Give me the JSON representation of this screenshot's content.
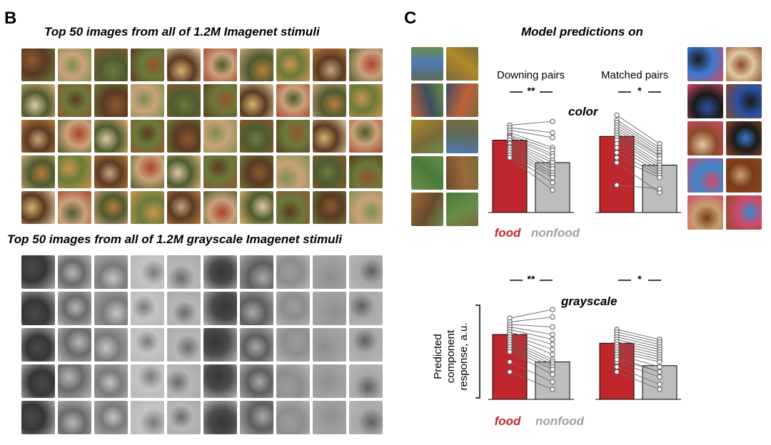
{
  "panel_b": {
    "letter": "B",
    "grid1_title": "Top 50 images from all of 1.2M Imagenet stimuli",
    "grid2_title": "Top 50 images from all of 1.2M grayscale Imagenet stimuli",
    "colors": [
      "#8a5a2b",
      "#c9954a",
      "#6b7a3a",
      "#a8442e",
      "#d8b070",
      "#5a3a22",
      "#b77b3c",
      "#7e8f4e",
      "#caa27a",
      "#94532f",
      "#e0c8a0",
      "#4e5a2e"
    ],
    "grays": [
      "#4a4a4a",
      "#7a7a7a",
      "#a9a9a9",
      "#5e5e5e",
      "#c4c4c4",
      "#353535",
      "#8d8d8d",
      "#b6b6b6",
      "#6a6a6a",
      "#9c9c9c"
    ]
  },
  "panel_c": {
    "letter": "C",
    "title": "Model predictions on",
    "subtitle_downing": "Downing pairs",
    "subtitle_matched": "Matched pairs",
    "sig_downing_color": "**",
    "sig_matched_color": "*",
    "sig_downing_gray": "**",
    "sig_matched_gray": "*",
    "label_color": "color",
    "label_gray": "grayscale",
    "label_food": "food",
    "label_nonfood": "nonfood",
    "ylabel_line1": "Predicted",
    "ylabel_line2": "component",
    "ylabel_line3": "response, a.u.",
    "food_color": "#c0272d",
    "nonfood_color": "#bdbdbd",
    "left_thumbs": [
      "#5c6b5a",
      "#3d4f5e",
      "#6b8c4a",
      "#4a7a3a",
      "#c0603a",
      "#4f7ab0",
      "#9a6a3a",
      "#7a6a3a",
      "#b08a2a",
      "#6a4a2a"
    ],
    "right_thumbs": [
      "#1a1a1a",
      "#1a1a1a",
      "#d04a6a",
      "#3a8ad0",
      "#2a50a0",
      "#3a7ad0",
      "#7a3a1a",
      "#8a4a2a",
      "#e0c8a0",
      "#c8a070"
    ]
  },
  "chart_data": [
    {
      "type": "bar",
      "title": "Downing pairs",
      "panel": "color",
      "categories": [
        "food",
        "nonfood"
      ],
      "values": [
        0.58,
        0.4
      ],
      "pairs": [
        [
          0.7,
          0.73
        ],
        [
          0.68,
          0.64
        ],
        [
          0.66,
          0.6
        ],
        [
          0.64,
          0.52
        ],
        [
          0.62,
          0.5
        ],
        [
          0.61,
          0.47
        ],
        [
          0.6,
          0.45
        ],
        [
          0.58,
          0.42
        ],
        [
          0.56,
          0.4
        ],
        [
          0.55,
          0.37
        ],
        [
          0.53,
          0.35
        ],
        [
          0.52,
          0.32
        ],
        [
          0.5,
          0.3
        ],
        [
          0.48,
          0.28
        ],
        [
          0.46,
          0.24
        ],
        [
          0.44,
          0.18
        ]
      ]
    },
    {
      "type": "bar",
      "title": "Matched pairs",
      "panel": "color",
      "categories": [
        "food",
        "nonfood"
      ],
      "values": [
        0.61,
        0.38
      ],
      "pairs": [
        [
          0.78,
          0.55
        ],
        [
          0.74,
          0.52
        ],
        [
          0.72,
          0.5
        ],
        [
          0.7,
          0.48
        ],
        [
          0.68,
          0.46
        ],
        [
          0.66,
          0.45
        ],
        [
          0.64,
          0.43
        ],
        [
          0.62,
          0.4
        ],
        [
          0.6,
          0.38
        ],
        [
          0.58,
          0.36
        ],
        [
          0.55,
          0.34
        ],
        [
          0.52,
          0.32
        ],
        [
          0.48,
          0.3
        ],
        [
          0.44,
          0.28
        ],
        [
          0.4,
          0.16
        ],
        [
          0.22,
          0.19
        ]
      ]
    },
    {
      "type": "bar",
      "title": "",
      "panel": "grayscale",
      "categories": [
        "food",
        "nonfood"
      ],
      "values": [
        0.52,
        0.3
      ],
      "pairs": [
        [
          0.65,
          0.72
        ],
        [
          0.62,
          0.66
        ],
        [
          0.6,
          0.58
        ],
        [
          0.58,
          0.52
        ],
        [
          0.56,
          0.48
        ],
        [
          0.54,
          0.44
        ],
        [
          0.52,
          0.4
        ],
        [
          0.5,
          0.36
        ],
        [
          0.48,
          0.32
        ],
        [
          0.46,
          0.3
        ],
        [
          0.44,
          0.28
        ],
        [
          0.42,
          0.26
        ],
        [
          0.4,
          0.24
        ],
        [
          0.38,
          0.2
        ],
        [
          0.3,
          0.14
        ],
        [
          0.22,
          0.08
        ]
      ]
    },
    {
      "type": "bar",
      "title": "",
      "panel": "grayscale",
      "categories": [
        "food",
        "nonfood"
      ],
      "values": [
        0.45,
        0.27
      ],
      "pairs": [
        [
          0.56,
          0.48
        ],
        [
          0.54,
          0.46
        ],
        [
          0.52,
          0.44
        ],
        [
          0.5,
          0.42
        ],
        [
          0.48,
          0.4
        ],
        [
          0.46,
          0.38
        ],
        [
          0.44,
          0.36
        ],
        [
          0.42,
          0.34
        ],
        [
          0.4,
          0.32
        ],
        [
          0.38,
          0.3
        ],
        [
          0.36,
          0.26
        ],
        [
          0.34,
          0.22
        ],
        [
          0.3,
          0.18
        ],
        [
          0.26,
          0.12
        ],
        [
          0.22,
          0.08
        ],
        [
          0.32,
          0.22
        ]
      ]
    }
  ]
}
